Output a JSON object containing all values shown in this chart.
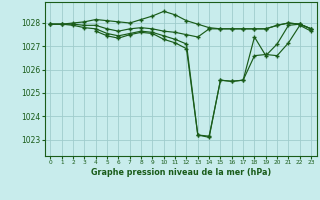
{
  "title": "Graphe pression niveau de la mer (hPa)",
  "bg_color": "#c8ecec",
  "grid_color": "#a0cccc",
  "line_color": "#1a5c1a",
  "xlim": [
    -0.5,
    23.5
  ],
  "ylim": [
    1022.3,
    1028.9
  ],
  "yticks": [
    1023,
    1024,
    1025,
    1026,
    1027,
    1028
  ],
  "xticks": [
    0,
    1,
    2,
    3,
    4,
    5,
    6,
    7,
    8,
    9,
    10,
    11,
    12,
    13,
    14,
    15,
    16,
    17,
    18,
    19,
    20,
    21,
    22,
    23
  ],
  "series": [
    {
      "x": [
        0,
        1,
        2,
        3,
        4,
        5,
        6,
        7,
        8,
        9,
        10,
        11,
        12,
        13,
        14,
        15,
        16,
        17,
        18,
        19,
        20,
        21,
        22,
        23
      ],
      "y": [
        1027.95,
        1027.95,
        1028.0,
        1028.05,
        1028.15,
        1028.1,
        1028.05,
        1028.0,
        1028.15,
        1028.3,
        1028.5,
        1028.35,
        1028.1,
        1027.95,
        1027.8,
        1027.75,
        1027.75,
        1027.75,
        1027.75,
        1027.75,
        1027.9,
        1028.0,
        1027.95,
        1027.75
      ]
    },
    {
      "x": [
        0,
        1,
        2,
        3,
        4,
        5,
        6,
        7,
        8,
        9,
        10,
        11,
        12,
        13,
        14,
        15,
        16,
        17,
        18,
        19,
        20,
        21,
        22,
        23
      ],
      "y": [
        1027.95,
        1027.95,
        1027.95,
        1027.9,
        1027.9,
        1027.75,
        1027.65,
        1027.75,
        1027.8,
        1027.75,
        1027.65,
        1027.6,
        1027.5,
        1027.4,
        1027.75,
        1027.75,
        1027.75,
        1027.75,
        1027.75,
        1027.75,
        1027.9,
        1028.0,
        1027.95,
        1027.75
      ]
    },
    {
      "x": [
        0,
        1,
        2,
        3,
        4,
        5,
        6,
        7,
        8,
        9,
        10,
        11,
        12,
        13,
        14,
        15,
        16,
        17,
        18,
        19,
        20,
        21,
        22,
        23
      ],
      "y": [
        1027.95,
        1027.95,
        1027.9,
        1027.8,
        1027.75,
        1027.55,
        1027.45,
        1027.55,
        1027.65,
        1027.6,
        1027.45,
        1027.3,
        1027.1,
        1023.2,
        1023.1,
        1025.55,
        1025.5,
        1025.55,
        1027.4,
        1026.6,
        1027.1,
        1027.9,
        1027.95,
        1027.75
      ]
    },
    {
      "x": [
        4,
        5,
        6,
        7,
        8,
        9,
        10,
        11,
        12,
        13,
        14,
        15,
        16,
        17,
        18,
        19,
        20,
        21,
        22,
        23
      ],
      "y": [
        1027.65,
        1027.45,
        1027.35,
        1027.5,
        1027.6,
        1027.55,
        1027.3,
        1027.15,
        1026.9,
        1023.2,
        1023.15,
        1025.55,
        1025.5,
        1025.55,
        1026.6,
        1026.65,
        1026.6,
        1027.15,
        1027.9,
        1027.65
      ]
    }
  ]
}
